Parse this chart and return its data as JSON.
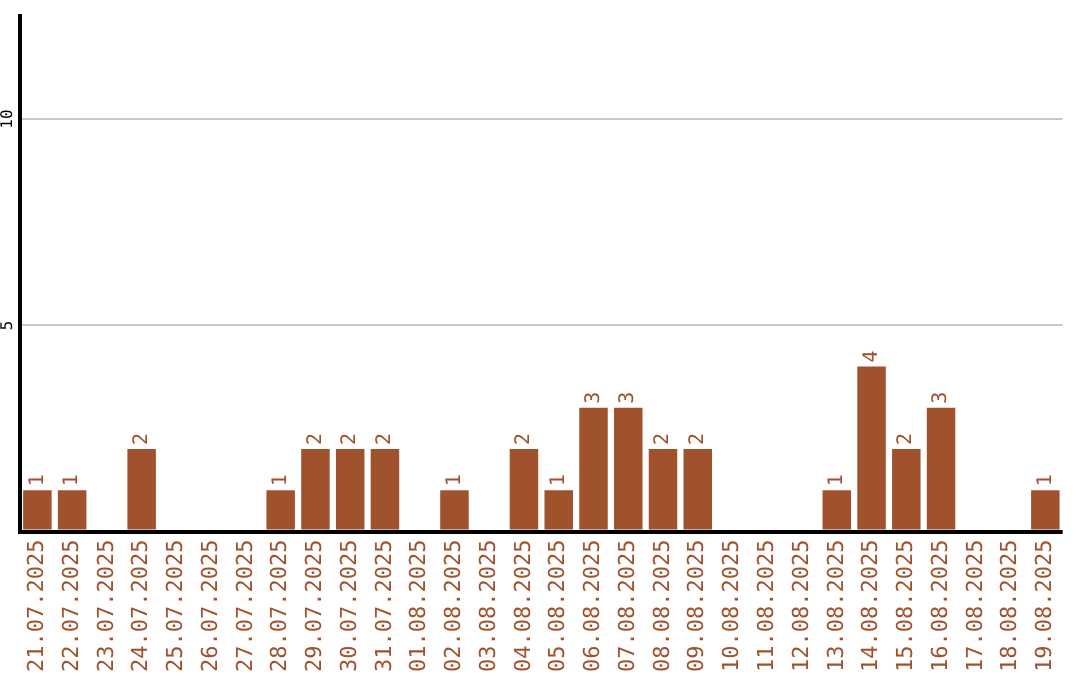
{
  "chart_data": {
    "type": "bar",
    "categories": [
      "21.07.2025",
      "22.07.2025",
      "23.07.2025",
      "24.07.2025",
      "25.07.2025",
      "26.07.2025",
      "27.07.2025",
      "28.07.2025",
      "29.07.2025",
      "30.07.2025",
      "31.07.2025",
      "01.08.2025",
      "02.08.2025",
      "03.08.2025",
      "04.08.2025",
      "05.08.2025",
      "06.08.2025",
      "07.08.2025",
      "08.08.2025",
      "09.08.2025",
      "10.08.2025",
      "11.08.2025",
      "12.08.2025",
      "13.08.2025",
      "14.08.2025",
      "15.08.2025",
      "16.08.2025",
      "17.08.2025",
      "18.08.2025",
      "19.08.2025"
    ],
    "values": [
      1,
      1,
      0,
      2,
      0,
      0,
      0,
      1,
      2,
      2,
      2,
      0,
      1,
      0,
      2,
      1,
      3,
      3,
      2,
      2,
      0,
      0,
      0,
      1,
      4,
      2,
      3,
      0,
      0,
      1
    ],
    "value_labels": [
      "1",
      "1",
      null,
      "2",
      null,
      null,
      null,
      "1",
      "2",
      "2",
      "2",
      null,
      "1",
      null,
      "2",
      "1",
      "3",
      "3",
      "2",
      "2",
      null,
      null,
      null,
      "1",
      "4",
      "2",
      "3",
      null,
      null,
      "1"
    ],
    "color": "#a0522d",
    "ylim": [
      0,
      12.5
    ],
    "yticks": [
      5,
      10
    ],
    "grid": "y",
    "legend": false
  }
}
